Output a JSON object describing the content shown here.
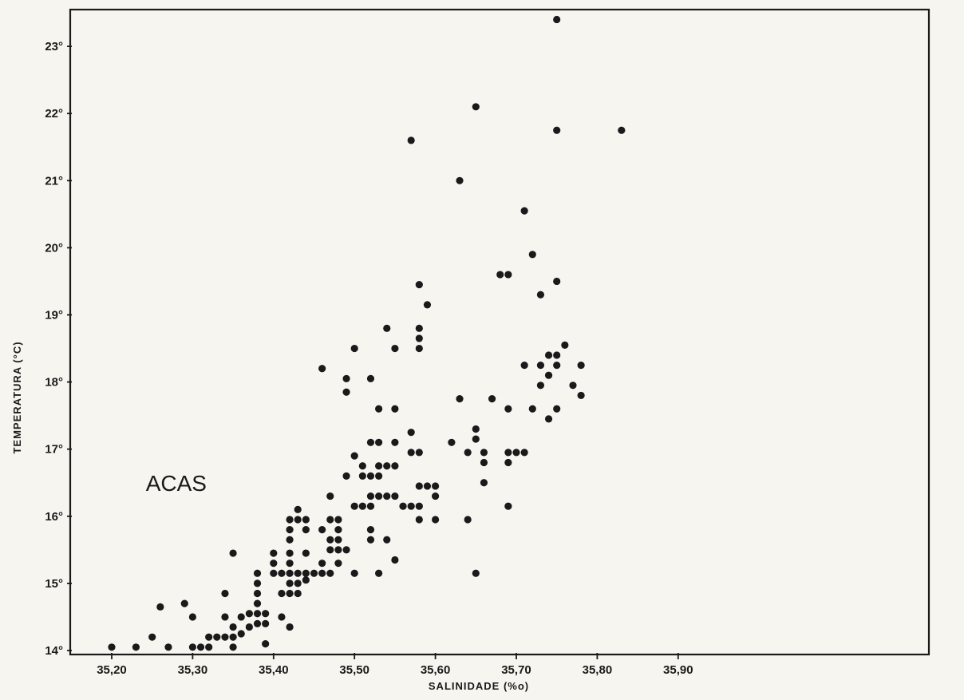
{
  "chart_data": {
    "type": "scatter",
    "title": "",
    "xlabel": "SALINIDADE (%o)",
    "ylabel": "TEMPERATURA (°C)",
    "xlim": [
      35.15,
      35.9
    ],
    "ylim": [
      14,
      23.5
    ],
    "x_ticks": [
      35.2,
      35.3,
      35.4,
      35.5,
      35.6,
      35.7,
      35.8,
      35.9
    ],
    "x_tick_labels": [
      "35,20",
      "35,30",
      "35,40",
      "35,50",
      "35,60",
      "35,70",
      "35,80",
      "35,90"
    ],
    "y_ticks": [
      14,
      15,
      16,
      17,
      18,
      19,
      20,
      21,
      22,
      23
    ],
    "y_tick_labels": [
      "14°",
      "15°",
      "16°",
      "17°",
      "18°",
      "19°",
      "20°",
      "21°",
      "22°",
      "23°"
    ],
    "grid": false,
    "annotations": [
      {
        "text": "ACAS",
        "x": 35.25,
        "y": 16.5
      }
    ],
    "series": [
      {
        "points": [
          [
            35.75,
            23.4
          ],
          [
            35.65,
            22.1
          ],
          [
            35.75,
            21.75
          ],
          [
            35.83,
            21.75
          ],
          [
            35.57,
            21.6
          ],
          [
            35.63,
            21.0
          ],
          [
            35.71,
            20.55
          ],
          [
            35.72,
            19.9
          ],
          [
            35.68,
            19.6
          ],
          [
            35.69,
            19.6
          ],
          [
            35.58,
            19.45
          ],
          [
            35.75,
            19.5
          ],
          [
            35.73,
            19.3
          ],
          [
            35.59,
            19.15
          ],
          [
            35.54,
            18.8
          ],
          [
            35.58,
            18.8
          ],
          [
            35.58,
            18.65
          ],
          [
            35.58,
            18.5
          ],
          [
            35.5,
            18.5
          ],
          [
            35.55,
            18.5
          ],
          [
            35.76,
            18.55
          ],
          [
            35.46,
            18.2
          ],
          [
            35.49,
            18.05
          ],
          [
            35.52,
            18.05
          ],
          [
            35.74,
            18.4
          ],
          [
            35.75,
            18.4
          ],
          [
            35.71,
            18.25
          ],
          [
            35.73,
            18.25
          ],
          [
            35.75,
            18.25
          ],
          [
            35.78,
            18.25
          ],
          [
            35.74,
            18.1
          ],
          [
            35.49,
            17.85
          ],
          [
            35.73,
            17.95
          ],
          [
            35.77,
            17.95
          ],
          [
            35.78,
            17.8
          ],
          [
            35.63,
            17.75
          ],
          [
            35.67,
            17.75
          ],
          [
            35.53,
            17.6
          ],
          [
            35.55,
            17.6
          ],
          [
            35.69,
            17.6
          ],
          [
            35.72,
            17.6
          ],
          [
            35.75,
            17.6
          ],
          [
            35.74,
            17.45
          ],
          [
            35.57,
            17.25
          ],
          [
            35.65,
            17.3
          ],
          [
            35.52,
            17.1
          ],
          [
            35.53,
            17.1
          ],
          [
            35.55,
            17.1
          ],
          [
            35.62,
            17.1
          ],
          [
            35.65,
            17.15
          ],
          [
            35.57,
            16.95
          ],
          [
            35.58,
            16.95
          ],
          [
            35.64,
            16.95
          ],
          [
            35.66,
            16.95
          ],
          [
            35.69,
            16.95
          ],
          [
            35.7,
            16.95
          ],
          [
            35.71,
            16.95
          ],
          [
            35.5,
            16.9
          ],
          [
            35.66,
            16.8
          ],
          [
            35.69,
            16.8
          ],
          [
            35.51,
            16.75
          ],
          [
            35.53,
            16.75
          ],
          [
            35.54,
            16.75
          ],
          [
            35.55,
            16.75
          ],
          [
            35.49,
            16.6
          ],
          [
            35.51,
            16.6
          ],
          [
            35.52,
            16.6
          ],
          [
            35.53,
            16.6
          ],
          [
            35.58,
            16.45
          ],
          [
            35.59,
            16.45
          ],
          [
            35.6,
            16.45
          ],
          [
            35.66,
            16.5
          ],
          [
            35.47,
            16.3
          ],
          [
            35.52,
            16.3
          ],
          [
            35.53,
            16.3
          ],
          [
            35.54,
            16.3
          ],
          [
            35.55,
            16.3
          ],
          [
            35.6,
            16.3
          ],
          [
            35.5,
            16.15
          ],
          [
            35.51,
            16.15
          ],
          [
            35.52,
            16.15
          ],
          [
            35.56,
            16.15
          ],
          [
            35.57,
            16.15
          ],
          [
            35.58,
            16.15
          ],
          [
            35.69,
            16.15
          ],
          [
            35.43,
            16.1
          ],
          [
            35.42,
            15.95
          ],
          [
            35.43,
            15.95
          ],
          [
            35.44,
            15.95
          ],
          [
            35.47,
            15.95
          ],
          [
            35.48,
            15.95
          ],
          [
            35.58,
            15.95
          ],
          [
            35.6,
            15.95
          ],
          [
            35.64,
            15.95
          ],
          [
            35.42,
            15.8
          ],
          [
            35.44,
            15.8
          ],
          [
            35.46,
            15.8
          ],
          [
            35.48,
            15.8
          ],
          [
            35.52,
            15.8
          ],
          [
            35.42,
            15.65
          ],
          [
            35.47,
            15.65
          ],
          [
            35.48,
            15.65
          ],
          [
            35.52,
            15.65
          ],
          [
            35.54,
            15.65
          ],
          [
            35.35,
            15.45
          ],
          [
            35.4,
            15.45
          ],
          [
            35.42,
            15.45
          ],
          [
            35.44,
            15.45
          ],
          [
            35.47,
            15.5
          ],
          [
            35.48,
            15.5
          ],
          [
            35.49,
            15.5
          ],
          [
            35.55,
            15.35
          ],
          [
            35.4,
            15.3
          ],
          [
            35.42,
            15.3
          ],
          [
            35.46,
            15.3
          ],
          [
            35.48,
            15.3
          ],
          [
            35.38,
            15.15
          ],
          [
            35.4,
            15.15
          ],
          [
            35.41,
            15.15
          ],
          [
            35.42,
            15.15
          ],
          [
            35.43,
            15.15
          ],
          [
            35.44,
            15.15
          ],
          [
            35.45,
            15.15
          ],
          [
            35.46,
            15.15
          ],
          [
            35.47,
            15.15
          ],
          [
            35.5,
            15.15
          ],
          [
            35.53,
            15.15
          ],
          [
            35.65,
            15.15
          ],
          [
            35.38,
            15.0
          ],
          [
            35.42,
            15.0
          ],
          [
            35.43,
            15.0
          ],
          [
            35.44,
            15.05
          ],
          [
            35.34,
            14.85
          ],
          [
            35.38,
            14.85
          ],
          [
            35.41,
            14.85
          ],
          [
            35.42,
            14.85
          ],
          [
            35.43,
            14.85
          ],
          [
            35.26,
            14.65
          ],
          [
            35.29,
            14.7
          ],
          [
            35.38,
            14.7
          ],
          [
            35.37,
            14.55
          ],
          [
            35.3,
            14.5
          ],
          [
            35.34,
            14.5
          ],
          [
            35.36,
            14.5
          ],
          [
            35.38,
            14.55
          ],
          [
            35.39,
            14.55
          ],
          [
            35.41,
            14.5
          ],
          [
            35.35,
            14.35
          ],
          [
            35.37,
            14.35
          ],
          [
            35.38,
            14.4
          ],
          [
            35.39,
            14.4
          ],
          [
            35.42,
            14.35
          ],
          [
            35.25,
            14.2
          ],
          [
            35.32,
            14.2
          ],
          [
            35.33,
            14.2
          ],
          [
            35.34,
            14.2
          ],
          [
            35.35,
            14.2
          ],
          [
            35.36,
            14.25
          ],
          [
            35.2,
            14.05
          ],
          [
            35.23,
            14.05
          ],
          [
            35.27,
            14.05
          ],
          [
            35.3,
            14.05
          ],
          [
            35.31,
            14.05
          ],
          [
            35.32,
            14.05
          ],
          [
            35.35,
            14.05
          ],
          [
            35.39,
            14.1
          ]
        ]
      }
    ]
  }
}
